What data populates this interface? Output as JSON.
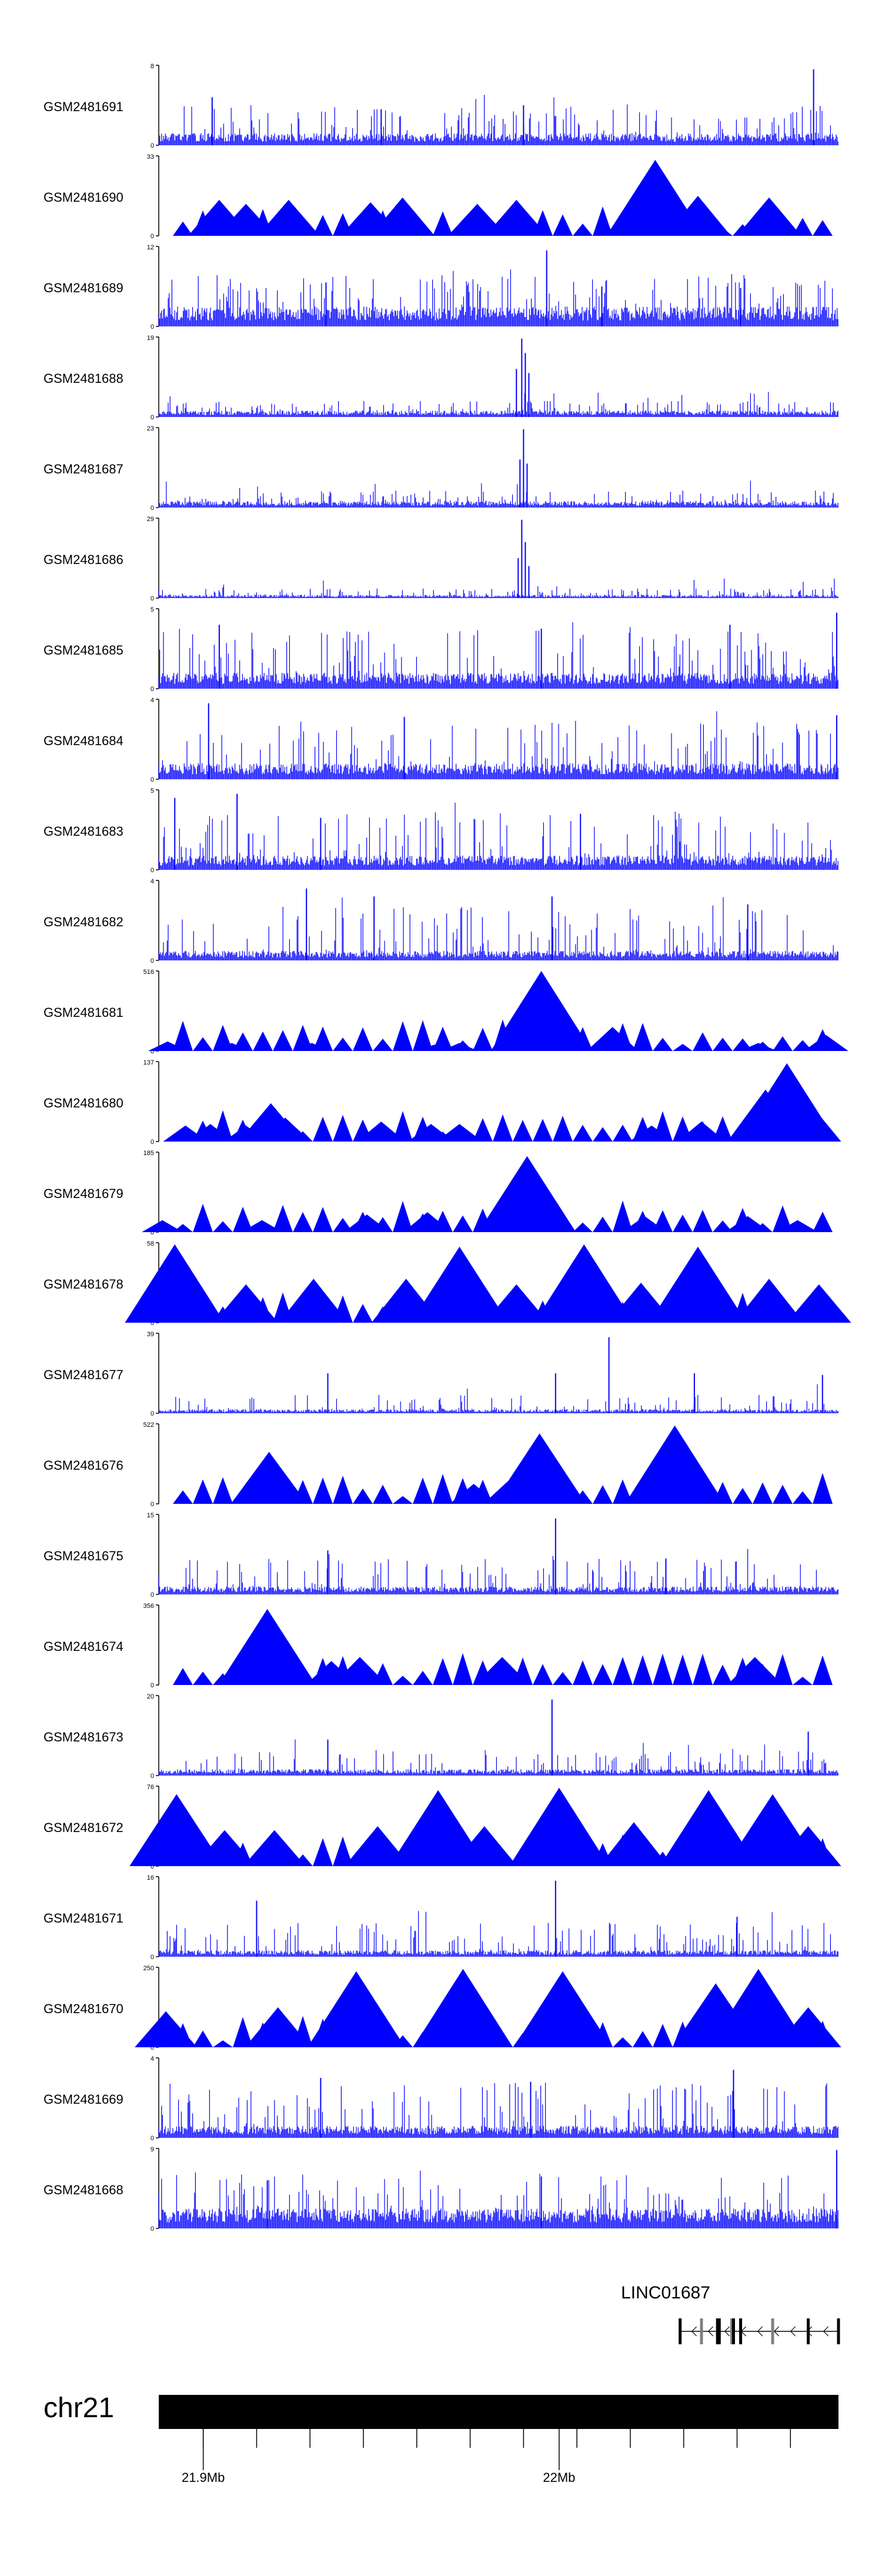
{
  "chart_data": {
    "type": "area",
    "title": "",
    "xlabel": "",
    "ylabel": "",
    "colors": {
      "signal": "#0000FF",
      "axis": "#000000",
      "gene": "#000000",
      "exon": "#808080",
      "chrom": "#000000"
    },
    "x_domain_mb": [
      21.8875,
      22.0785
    ],
    "ytick_style": "min-max",
    "tracks": [
      {
        "name": "GSM2481691",
        "ymax": "8",
        "ymin": "0",
        "style": "dense",
        "base": 0.15,
        "noise": 0.35,
        "peaks": [
          [
            21.9025,
            0.6
          ],
          [
            22.0715,
            0.95
          ],
          [
            21.95,
            0.45
          ],
          [
            21.99,
            0.5
          ]
        ]
      },
      {
        "name": "GSM2481690",
        "ymax": "33",
        "ymin": "0",
        "style": "triangles",
        "peaks": [
          [
            21.9045,
            0.45
          ],
          [
            21.912,
            0.4
          ],
          [
            21.924,
            0.45
          ],
          [
            21.947,
            0.42
          ],
          [
            21.956,
            0.48
          ],
          [
            21.977,
            0.4
          ],
          [
            21.988,
            0.45
          ],
          [
            22.027,
            0.95
          ],
          [
            22.039,
            0.5
          ],
          [
            22.059,
            0.48
          ]
        ]
      },
      {
        "name": "GSM2481689",
        "ymax": "12",
        "ymin": "0",
        "style": "dense",
        "base": 0.25,
        "noise": 0.4,
        "peaks": [
          [
            21.9345,
            0.55
          ],
          [
            21.9965,
            0.95
          ],
          [
            22.012,
            0.5
          ],
          [
            22.051,
            0.48
          ]
        ]
      },
      {
        "name": "GSM2481688",
        "ymax": "19",
        "ymin": "0",
        "style": "dense",
        "base": 0.08,
        "noise": 0.12,
        "peaks": [
          [
            21.988,
            0.6
          ],
          [
            21.9895,
            0.98
          ],
          [
            21.9905,
            0.8
          ],
          [
            21.9915,
            0.55
          ]
        ]
      },
      {
        "name": "GSM2481687",
        "ymax": "23",
        "ymin": "0",
        "style": "dense",
        "base": 0.08,
        "noise": 0.14,
        "peaks": [
          [
            21.989,
            0.6
          ],
          [
            21.99,
            0.98
          ],
          [
            21.991,
            0.55
          ]
        ]
      },
      {
        "name": "GSM2481686",
        "ymax": "29",
        "ymin": "0",
        "style": "dense",
        "base": 0.04,
        "noise": 0.08,
        "peaks": [
          [
            21.9885,
            0.5
          ],
          [
            21.9895,
            0.98
          ],
          [
            21.9905,
            0.7
          ],
          [
            21.9915,
            0.4
          ]
        ]
      },
      {
        "name": "GSM2481685",
        "ymax": "5",
        "ymin": "0",
        "style": "dense",
        "base": 0.2,
        "noise": 0.55,
        "peaks": [
          [
            21.9045,
            0.8
          ],
          [
            21.995,
            0.75
          ],
          [
            22.048,
            0.8
          ],
          [
            22.078,
            0.95
          ]
        ]
      },
      {
        "name": "GSM2481684",
        "ymax": "4",
        "ymin": "0",
        "style": "dense",
        "base": 0.2,
        "noise": 0.55,
        "peaks": [
          [
            21.9015,
            0.95
          ],
          [
            21.9565,
            0.78
          ],
          [
            22.078,
            0.8
          ]
        ]
      },
      {
        "name": "GSM2481683",
        "ymax": "5",
        "ymin": "0",
        "style": "dense",
        "base": 0.18,
        "noise": 0.55,
        "peaks": [
          [
            21.892,
            0.9
          ],
          [
            21.9095,
            0.95
          ],
          [
            21.933,
            0.65
          ],
          [
            22.006,
            0.7
          ]
        ]
      },
      {
        "name": "GSM2481682",
        "ymax": "4",
        "ymin": "0",
        "style": "dense",
        "base": 0.12,
        "noise": 0.55,
        "peaks": [
          [
            21.929,
            0.9
          ],
          [
            21.948,
            0.8
          ],
          [
            21.998,
            0.8
          ],
          [
            22.053,
            0.7
          ]
        ]
      },
      {
        "name": "GSM2481681",
        "ymax": "516",
        "ymin": "0",
        "style": "triangles",
        "peaks": [
          [
            21.89,
            0.12
          ],
          [
            21.908,
            0.1
          ],
          [
            21.9305,
            0.1
          ],
          [
            21.965,
            0.08
          ],
          [
            21.972,
            0.1
          ],
          [
            21.995,
            1.0
          ],
          [
            22.015,
            0.3
          ],
          [
            22.056,
            0.1
          ],
          [
            22.075,
            0.2
          ]
        ]
      },
      {
        "name": "GSM2481680",
        "ymax": "137",
        "ymin": "0",
        "style": "triangles",
        "peaks": [
          [
            21.895,
            0.2
          ],
          [
            21.902,
            0.22
          ],
          [
            21.912,
            0.2
          ],
          [
            21.919,
            0.48
          ],
          [
            21.923,
            0.3
          ],
          [
            21.95,
            0.25
          ],
          [
            21.964,
            0.22
          ],
          [
            21.972,
            0.22
          ],
          [
            22.026,
            0.2
          ],
          [
            22.04,
            0.25
          ],
          [
            22.058,
            0.65
          ],
          [
            22.064,
            0.98
          ],
          [
            22.07,
            0.5
          ]
        ]
      },
      {
        "name": "GSM2481679",
        "ymax": "185",
        "ymin": "0",
        "style": "triangles",
        "peaks": [
          [
            21.8885,
            0.15
          ],
          [
            21.9165,
            0.15
          ],
          [
            21.946,
            0.22
          ],
          [
            21.963,
            0.25
          ],
          [
            21.991,
            0.95
          ],
          [
            22.024,
            0.2
          ],
          [
            22.053,
            0.2
          ],
          [
            22.067,
            0.15
          ]
        ]
      },
      {
        "name": "GSM2481678",
        "ymax": "58",
        "ymin": "0",
        "style": "triangles",
        "peaks": [
          [
            21.892,
            0.98
          ],
          [
            21.912,
            0.48
          ],
          [
            21.931,
            0.55
          ],
          [
            21.957,
            0.55
          ],
          [
            21.972,
            0.95
          ],
          [
            21.988,
            0.48
          ],
          [
            22.007,
            0.98
          ],
          [
            22.023,
            0.5
          ],
          [
            22.039,
            0.95
          ],
          [
            22.059,
            0.55
          ],
          [
            22.073,
            0.48
          ]
        ]
      },
      {
        "name": "GSM2481677",
        "ymax": "39",
        "ymin": "0",
        "style": "dense",
        "base": 0.05,
        "noise": 0.18,
        "peaks": [
          [
            21.935,
            0.5
          ],
          [
            21.999,
            0.5
          ],
          [
            22.014,
            0.95
          ],
          [
            22.038,
            0.5
          ],
          [
            22.074,
            0.48
          ]
        ]
      },
      {
        "name": "GSM2481676",
        "ymax": "522",
        "ymin": "0",
        "style": "triangles",
        "peaks": [
          [
            21.9185,
            0.65
          ],
          [
            21.976,
            0.25
          ],
          [
            21.986,
            0.3
          ],
          [
            21.9945,
            0.88
          ],
          [
            22.0325,
            0.98
          ]
        ]
      },
      {
        "name": "GSM2481675",
        "ymax": "15",
        "ymin": "0",
        "style": "dense",
        "base": 0.1,
        "noise": 0.35,
        "peaks": [
          [
            21.935,
            0.55
          ],
          [
            21.999,
            0.95
          ],
          [
            22.03,
            0.45
          ]
        ]
      },
      {
        "name": "GSM2481674",
        "ymax": "356",
        "ymin": "0",
        "style": "triangles",
        "peaks": [
          [
            21.918,
            0.95
          ],
          [
            21.936,
            0.3
          ],
          [
            21.944,
            0.35
          ],
          [
            21.984,
            0.35
          ],
          [
            22.055,
            0.35
          ]
        ]
      },
      {
        "name": "GSM2481673",
        "ymax": "20",
        "ymin": "0",
        "style": "dense",
        "base": 0.08,
        "noise": 0.25,
        "peaks": [
          [
            21.935,
            0.45
          ],
          [
            21.998,
            0.95
          ],
          [
            22.07,
            0.55
          ]
        ]
      },
      {
        "name": "GSM2481672",
        "ymax": "76",
        "ymin": "0",
        "style": "triangles",
        "peaks": [
          [
            21.8925,
            0.9
          ],
          [
            21.906,
            0.45
          ],
          [
            21.92,
            0.45
          ],
          [
            21.949,
            0.5
          ],
          [
            21.966,
            0.95
          ],
          [
            21.979,
            0.5
          ],
          [
            22.0,
            0.98
          ],
          [
            22.021,
            0.55
          ],
          [
            22.042,
            0.95
          ],
          [
            22.06,
            0.9
          ],
          [
            22.07,
            0.5
          ]
        ]
      },
      {
        "name": "GSM2481671",
        "ymax": "16",
        "ymin": "0",
        "style": "dense",
        "base": 0.08,
        "noise": 0.35,
        "peaks": [
          [
            21.915,
            0.7
          ],
          [
            21.999,
            0.95
          ],
          [
            22.05,
            0.5
          ]
        ]
      },
      {
        "name": "GSM2481670",
        "ymax": "250",
        "ymin": "0",
        "style": "triangles",
        "peaks": [
          [
            21.8895,
            0.45
          ],
          [
            21.921,
            0.5
          ],
          [
            21.943,
            0.95
          ],
          [
            21.973,
            0.98
          ],
          [
            22.001,
            0.95
          ],
          [
            22.044,
            0.8
          ],
          [
            22.056,
            0.98
          ],
          [
            22.07,
            0.5
          ]
        ]
      },
      {
        "name": "GSM2481669",
        "ymax": "4",
        "ymin": "0",
        "style": "dense",
        "base": 0.15,
        "noise": 0.55,
        "peaks": [
          [
            21.933,
            0.75
          ],
          [
            21.992,
            0.7
          ],
          [
            22.049,
            0.85
          ]
        ]
      },
      {
        "name": "GSM2481668",
        "ymax": "9",
        "ymin": "0",
        "style": "dense",
        "base": 0.25,
        "noise": 0.45,
        "peaks": [
          [
            21.918,
            0.6
          ],
          [
            21.995,
            0.65
          ],
          [
            22.078,
            0.98
          ]
        ]
      }
    ],
    "gene": {
      "name": "LINC01687",
      "start_mb": 22.034,
      "end_mb": 22.0785,
      "strand": "-",
      "exons_mb": [
        22.034,
        22.04,
        22.0445,
        22.045,
        22.0485,
        22.049,
        22.051,
        22.06,
        22.07,
        22.0785
      ]
    },
    "chromosome": {
      "name": "chr21",
      "ticks_mb": [
        21.9,
        21.915,
        21.93,
        21.945,
        21.96,
        21.975,
        21.99,
        22.005,
        22.02,
        22.035,
        22.05,
        22.065
      ],
      "labels": [
        {
          "mb": 21.9,
          "text": "21.9Mb"
        },
        {
          "mb": 22.0,
          "text": "22Mb"
        }
      ]
    }
  }
}
